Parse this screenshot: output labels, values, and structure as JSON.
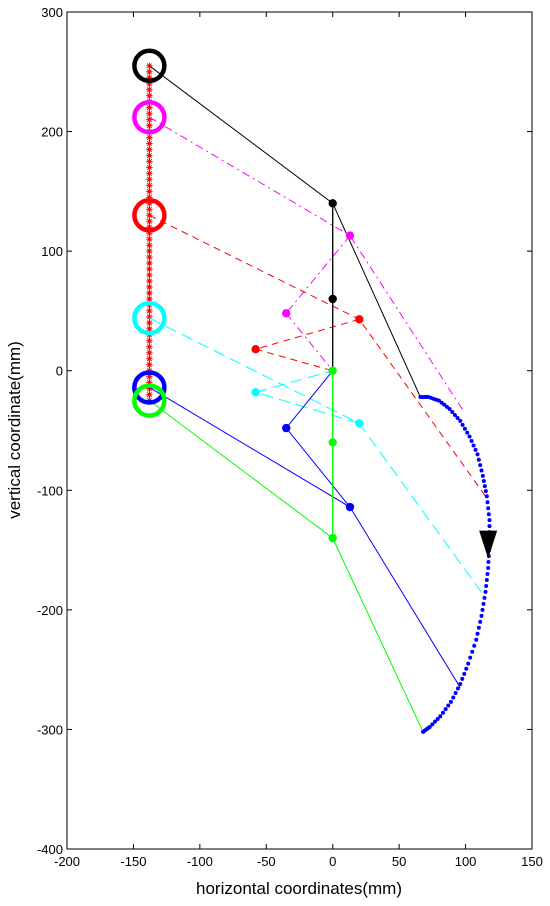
{
  "chart_data": {
    "type": "line",
    "xlabel": "horizontal coordinates(mm)",
    "ylabel": "vertical coordinate(mm)",
    "xlim": [
      -200,
      150
    ],
    "ylim": [
      -400,
      300
    ],
    "xticks": [
      -200,
      -150,
      -100,
      -50,
      0,
      50,
      100,
      150
    ],
    "yticks": [
      -400,
      -300,
      -200,
      -100,
      0,
      100,
      200,
      300
    ],
    "grid": false,
    "legend": "none",
    "rail": {
      "x": -138,
      "y_from": -25,
      "y_to": 255,
      "color": "#ff0000",
      "marker": "asterisk"
    },
    "path": {
      "color": "#0000ff",
      "marker": "dot",
      "points": [
        [
          66,
          -22
        ],
        [
          72,
          -22
        ],
        [
          80,
          -25
        ],
        [
          88,
          -32
        ],
        [
          96,
          -42
        ],
        [
          103,
          -55
        ],
        [
          109,
          -70
        ],
        [
          113,
          -88
        ],
        [
          116,
          -105
        ],
        [
          118,
          -125
        ],
        [
          118,
          -145
        ],
        [
          117,
          -165
        ],
        [
          115,
          -185
        ],
        [
          112,
          -205
        ],
        [
          108,
          -225
        ],
        [
          102,
          -245
        ],
        [
          96,
          -262
        ],
        [
          89,
          -277
        ],
        [
          81,
          -289
        ],
        [
          73,
          -298
        ],
        [
          68,
          -302
        ]
      ]
    },
    "direction_marker": {
      "x": 117,
      "y": -148,
      "color": "#000000"
    },
    "linkages": [
      {
        "color": "#000000",
        "dash": "solid",
        "ring": [
          -138,
          255
        ],
        "joint": [
          0,
          140
        ],
        "mid": [
          0,
          60
        ],
        "end": [
          66,
          -22
        ]
      },
      {
        "color": "#ff00ff",
        "dash": "dashdot",
        "ring": [
          -138,
          212
        ],
        "joint": [
          13,
          113
        ],
        "mid": [
          -35,
          48
        ],
        "end": [
          98,
          -33
        ]
      },
      {
        "color": "#ff0000",
        "dash": "dashed",
        "ring": [
          -138,
          130
        ],
        "joint": [
          20,
          43
        ],
        "mid": [
          -58,
          18
        ],
        "end": [
          115,
          -105
        ]
      },
      {
        "color": "#00ffff",
        "dash": "longdash",
        "ring": [
          -138,
          44
        ],
        "joint": [
          20,
          -44
        ],
        "mid": [
          -58,
          -18
        ],
        "end": [
          115,
          -190
        ]
      },
      {
        "color": "#0000ff",
        "dash": "solid",
        "ring": [
          -138,
          -14
        ],
        "joint": [
          13,
          -114
        ],
        "mid": [
          -35,
          -48
        ],
        "end": [
          96,
          -265
        ]
      },
      {
        "color": "#00ff00",
        "dash": "solid",
        "ring": [
          -138,
          -25
        ],
        "joint": [
          0,
          -140
        ],
        "mid": [
          0,
          -60
        ],
        "end": [
          68,
          -302
        ]
      }
    ]
  }
}
